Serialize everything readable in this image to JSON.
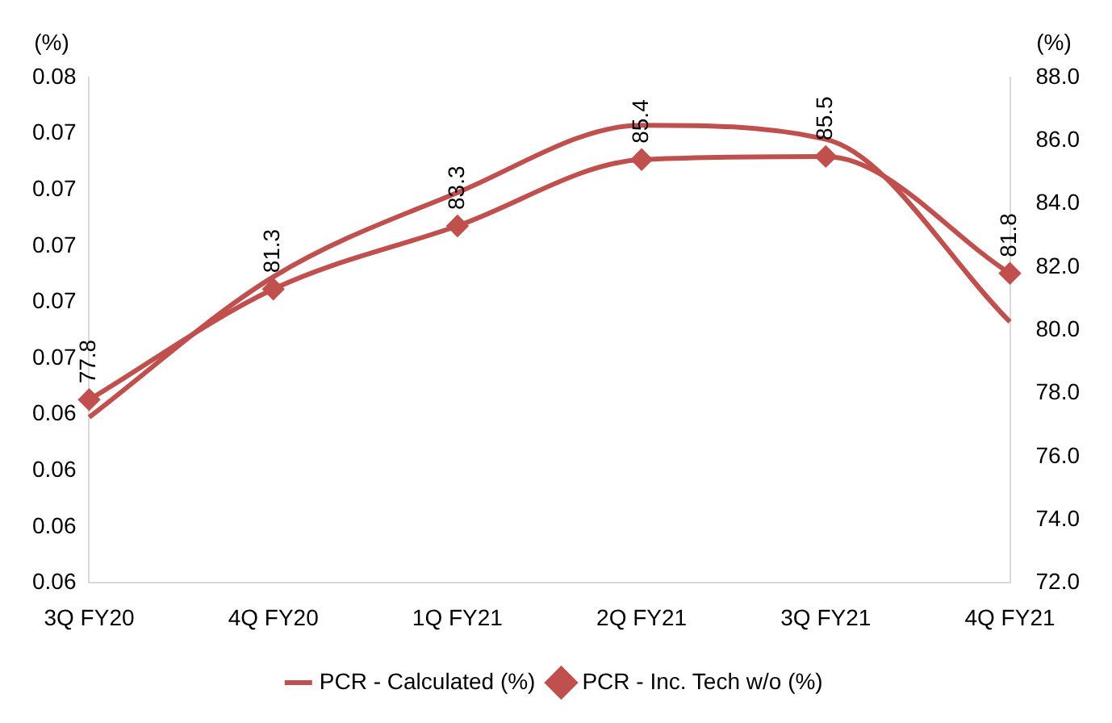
{
  "chart_data": {
    "type": "line",
    "categories": [
      "3Q FY20",
      "4Q FY20",
      "1Q FY21",
      "2Q FY21",
      "3Q FY21",
      "4Q FY21"
    ],
    "series": [
      {
        "name": "PCR - Calculated (%)",
        "color": "#c0504d",
        "marker": "none",
        "values": [
          0.0639,
          0.0689,
          0.0719,
          0.0743,
          0.0738,
          0.0673
        ]
      },
      {
        "name": "PCR - Inc. Tech w/o (%)",
        "color": "#c0504d",
        "marker": "diamond",
        "axis": "y2",
        "values": [
          77.8,
          81.3,
          83.3,
          85.4,
          85.5,
          81.8
        ],
        "value_labels": [
          "77.8",
          "81.3",
          "83.3",
          "85.4",
          "85.5",
          "81.8"
        ]
      }
    ],
    "ylabel": "(%)",
    "y2label": "(%)",
    "ylim": [
      0.058,
      0.076
    ],
    "yticks": [
      {
        "value": 0.058,
        "label": "0.06"
      },
      {
        "value": 0.06,
        "label": "0.06"
      },
      {
        "value": 0.062,
        "label": "0.06"
      },
      {
        "value": 0.064,
        "label": "0.06"
      },
      {
        "value": 0.066,
        "label": "0.07"
      },
      {
        "value": 0.068,
        "label": "0.07"
      },
      {
        "value": 0.07,
        "label": "0.07"
      },
      {
        "value": 0.072,
        "label": "0.07"
      },
      {
        "value": 0.074,
        "label": "0.07"
      },
      {
        "value": 0.076,
        "label": "0.08"
      }
    ],
    "y2lim": [
      72,
      88
    ],
    "y2ticks": [
      {
        "value": 72,
        "label": "72.0"
      },
      {
        "value": 74,
        "label": "74.0"
      },
      {
        "value": 76,
        "label": "76.0"
      },
      {
        "value": 78,
        "label": "78.0"
      },
      {
        "value": 80,
        "label": "80.0"
      },
      {
        "value": 82,
        "label": "82.0"
      },
      {
        "value": 84,
        "label": "84.0"
      },
      {
        "value": 86,
        "label": "86.0"
      },
      {
        "value": 88,
        "label": "88.0"
      }
    ],
    "grid": false,
    "legend": "bottom"
  }
}
